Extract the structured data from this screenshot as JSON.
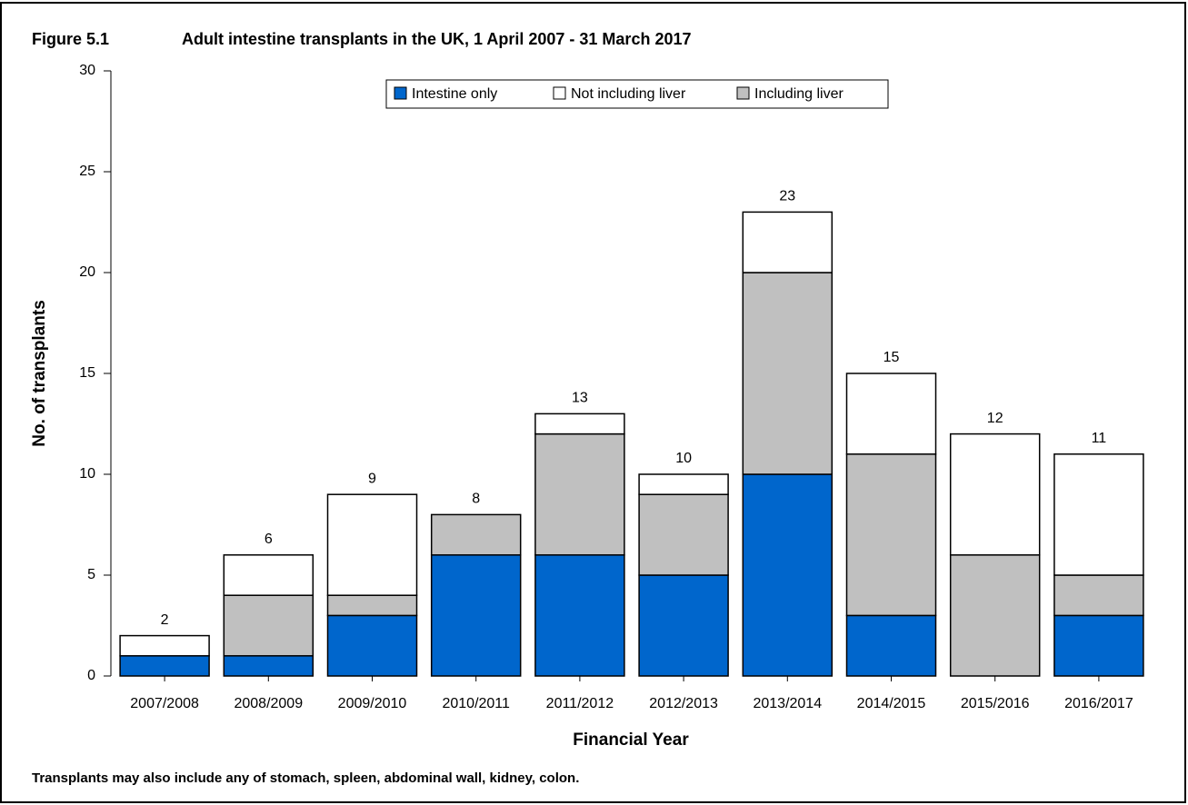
{
  "chart_data": {
    "type": "stacked-bar",
    "figure_label": "Figure 5.1",
    "title": "Adult intestine transplants in the UK, 1 April 2007 - 31 March 2017",
    "x_label": "Financial Year",
    "y_label": "No. of transplants",
    "footnote": "Transplants may also include any of stomach, spleen, abdominal wall, kidney, colon.",
    "categories": [
      "2007/2008",
      "2008/2009",
      "2009/2010",
      "2010/2011",
      "2011/2012",
      "2012/2013",
      "2013/2014",
      "2014/2015",
      "2015/2016",
      "2016/2017"
    ],
    "series": [
      {
        "name": "Intestine only",
        "color": "#0066cc",
        "values": [
          1,
          1,
          3,
          6,
          6,
          5,
          10,
          3,
          0,
          3
        ]
      },
      {
        "name": "Not including liver",
        "color": "#ffffff",
        "values": [
          1,
          2,
          5,
          0,
          1,
          1,
          3,
          4,
          6,
          6
        ]
      },
      {
        "name": "Including liver",
        "color": "#c0c0c0",
        "values": [
          0,
          3,
          1,
          2,
          6,
          4,
          10,
          8,
          6,
          2
        ]
      }
    ],
    "totals": [
      2,
      6,
      9,
      8,
      13,
      10,
      23,
      15,
      12,
      11
    ],
    "ylim": [
      0,
      30
    ],
    "yticks": [
      0,
      5,
      10,
      15,
      20,
      25,
      30
    ],
    "grid": false,
    "legend": "top"
  }
}
